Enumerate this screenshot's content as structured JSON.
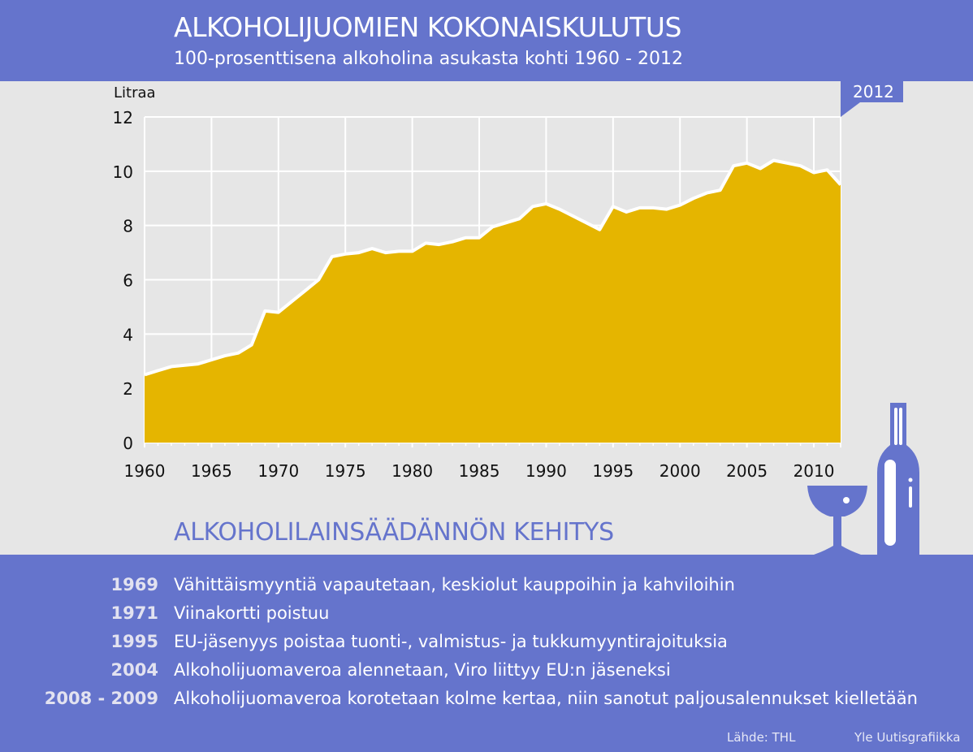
{
  "header": {
    "title": "ALKOHOLIJUOMIEN KOKONAISKULUTUS",
    "subtitle": "100-prosenttisena alkoholina asukasta kohti 1960 - 2012"
  },
  "chart_data": {
    "type": "area",
    "title": "ALKOHOLIJUOMIEN KOKONAISKULUTUS",
    "subtitle": "100-prosenttisena alkoholina asukasta kohti 1960 - 2012",
    "ylabel": "Litraa",
    "xlabel": "",
    "xlim": [
      1960,
      2012
    ],
    "ylim": [
      0,
      12
    ],
    "x_ticks": [
      "1960",
      "1965",
      "1970",
      "1975",
      "1980",
      "1985",
      "1990",
      "1995",
      "2000",
      "2005",
      "2010"
    ],
    "y_ticks": [
      "0",
      "2",
      "4",
      "6",
      "8",
      "10",
      "12"
    ],
    "grid": true,
    "annotation": "2012",
    "fill_color": "#e5b500",
    "line_color": "#ffffff",
    "x": [
      1960,
      1961,
      1962,
      1963,
      1964,
      1965,
      1966,
      1967,
      1968,
      1969,
      1970,
      1971,
      1972,
      1973,
      1974,
      1975,
      1976,
      1977,
      1978,
      1979,
      1980,
      1981,
      1982,
      1983,
      1984,
      1985,
      1986,
      1987,
      1988,
      1989,
      1990,
      1991,
      1992,
      1993,
      1994,
      1995,
      1996,
      1997,
      1998,
      1999,
      2000,
      2001,
      2002,
      2003,
      2004,
      2005,
      2006,
      2007,
      2008,
      2009,
      2010,
      2011,
      2012
    ],
    "values": [
      2.5,
      2.65,
      2.8,
      2.85,
      2.9,
      3.05,
      3.2,
      3.3,
      3.6,
      4.85,
      4.8,
      5.2,
      5.6,
      6.0,
      6.85,
      6.95,
      7.0,
      7.15,
      7.0,
      7.05,
      7.05,
      7.35,
      7.3,
      7.4,
      7.55,
      7.55,
      7.95,
      8.1,
      8.25,
      8.7,
      8.8,
      8.6,
      8.35,
      8.1,
      7.85,
      8.7,
      8.5,
      8.65,
      8.65,
      8.6,
      8.75,
      9.0,
      9.2,
      9.3,
      10.2,
      10.3,
      10.1,
      10.4,
      10.3,
      10.2,
      9.95,
      10.05,
      9.5
    ]
  },
  "legislation": {
    "title": "ALKOHOLILAINSÄÄDÄNNÖN KEHITYS",
    "events": [
      {
        "year": "1969",
        "text": "Vähittäismyyntiä vapautetaan, keskiolut kauppoihin ja kahviloihin"
      },
      {
        "year": "1971",
        "text": "Viinakortti poistuu"
      },
      {
        "year": "1995",
        "text": "EU-jäsenyys poistaa tuonti-, valmistus- ja tukkumyyntirajoituksia"
      },
      {
        "year": "2004",
        "text": "Alkoholijuomaveroa alennetaan, Viro liittyy EU:n jäseneksi"
      },
      {
        "year": "2008 - 2009",
        "text": "Alkoholijuomaveroa korotetaan kolme kertaa, niin sanotut paljousalennukset kielletään"
      }
    ]
  },
  "footer": {
    "source": "Lähde: THL",
    "credit": "Yle Uutisgrafiikka"
  },
  "colors": {
    "accent": "#6574cc",
    "fill": "#e5b500",
    "background": "#e6e6e6"
  },
  "icons": [
    "wine-glass-icon",
    "bottle-icon"
  ]
}
